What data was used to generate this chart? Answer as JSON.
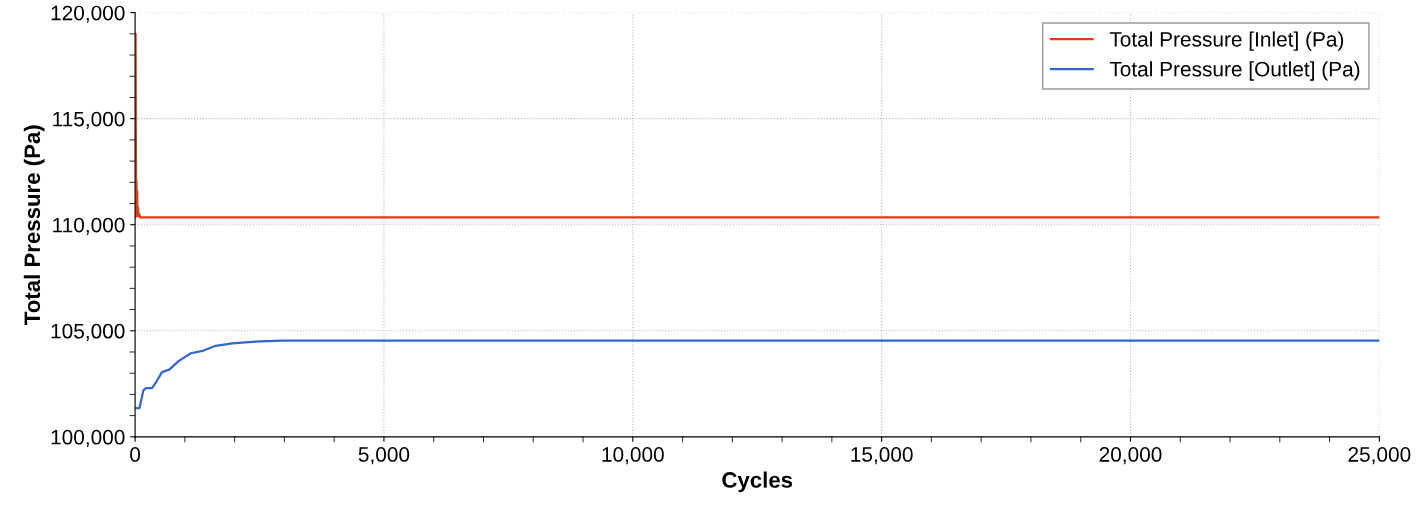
{
  "chart_data": {
    "type": "line",
    "xlabel": "Cycles",
    "ylabel": "Total Pressure (Pa)",
    "xlim": [
      0,
      25000
    ],
    "ylim": [
      100000,
      120000
    ],
    "xticks": [
      {
        "value": 0,
        "label": "0"
      },
      {
        "value": 5000,
        "label": "5,000"
      },
      {
        "value": 10000,
        "label": "10,000"
      },
      {
        "value": 15000,
        "label": "15,000"
      },
      {
        "value": 20000,
        "label": "20,000"
      },
      {
        "value": 25000,
        "label": "25,000"
      }
    ],
    "yticks": [
      {
        "value": 100000,
        "label": "100,000"
      },
      {
        "value": 105000,
        "label": "105,000"
      },
      {
        "value": 110000,
        "label": "110,000"
      },
      {
        "value": 115000,
        "label": "115,000"
      },
      {
        "value": 120000,
        "label": "120,000"
      }
    ],
    "grid": true,
    "legend": "top right",
    "marker": "none",
    "line_style": "solid",
    "series": [
      {
        "name": "Total Pressure [Inlet] (Pa)",
        "color": "#e03c14",
        "x": [
          0,
          10,
          20,
          27,
          35,
          42,
          50,
          60,
          70,
          85,
          100,
          25000
        ],
        "values": [
          110350,
          119000,
          110400,
          112100,
          110400,
          111600,
          110400,
          110800,
          110400,
          110500,
          110350,
          110350
        ]
      },
      {
        "name": "Total Pressure [Outlet] (Pa)",
        "color": "#3366cc",
        "x": [
          0,
          87,
          167,
          220,
          340,
          433,
          540,
          687,
          873,
          1120,
          1353,
          1620,
          1953,
          2353,
          2953,
          25000
        ],
        "values": [
          101350,
          101350,
          102190,
          102300,
          102300,
          102620,
          103050,
          103170,
          103570,
          103940,
          104050,
          104290,
          104410,
          104480,
          104540,
          104540
        ]
      }
    ]
  }
}
